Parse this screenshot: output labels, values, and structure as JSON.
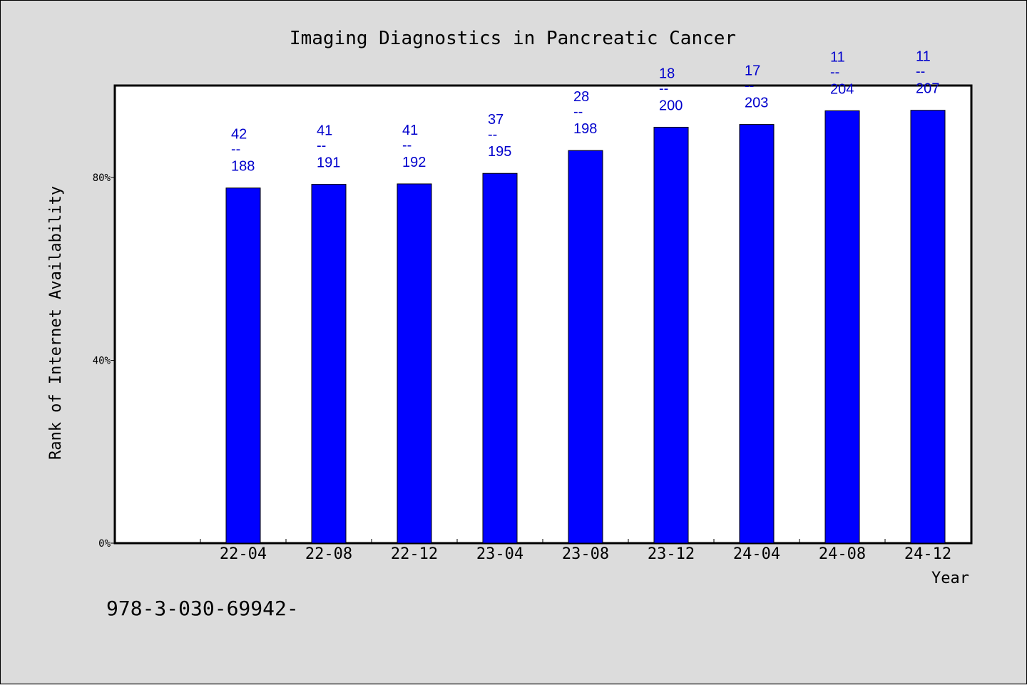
{
  "chart_data": {
    "type": "bar",
    "title": "Imaging Diagnostics in Pancreatic Cancer",
    "ylabel": "Rank of Internet Availability",
    "xlabel": "Year",
    "y_ticks": [
      "0%",
      "40%",
      "80%"
    ],
    "y_tick_values": [
      0,
      40,
      80
    ],
    "ylim": [
      0,
      100
    ],
    "categories": [
      "22-04",
      "22-08",
      "22-12",
      "23-04",
      "23-08",
      "23-12",
      "24-04",
      "24-08",
      "24-12"
    ],
    "values": [
      77.7,
      78.5,
      78.6,
      80.9,
      85.9,
      91.0,
      91.6,
      94.6,
      94.7
    ],
    "ranks": [
      "42",
      "41",
      "41",
      "37",
      "28",
      "18",
      "17",
      "11",
      "11"
    ],
    "totals": [
      "188",
      "191",
      "192",
      "195",
      "198",
      "200",
      "203",
      "204",
      "207"
    ],
    "separator": "--",
    "bar_color": "#0000ff",
    "label_color": "#0000cc",
    "grid": false
  },
  "footer": {
    "isbn": "978-3-030-69942-"
  }
}
